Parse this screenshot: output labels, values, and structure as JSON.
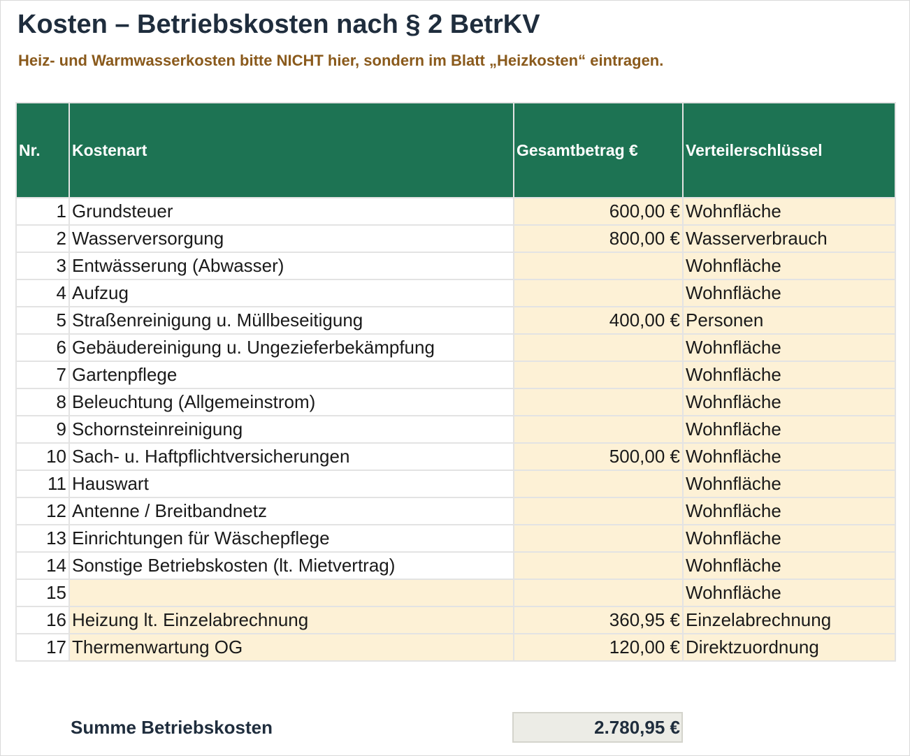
{
  "title": "Kosten – Betriebskosten nach § 2 BetrKV",
  "subtitle": "Heiz- und Warmwasserkosten bitte NICHT hier, sondern im Blatt „Heizkosten“ eintragen.",
  "table": {
    "headers": {
      "nr": "Nr.",
      "kostenart": "Kostenart",
      "gesamtbetrag": "Gesamtbetrag €",
      "verteilerschluessel": "Verteilerschlüssel"
    },
    "rows": [
      {
        "nr": "1",
        "kostenart": "Grundsteuer",
        "betrag": "600,00 €",
        "schluessel": "Wohnfläche"
      },
      {
        "nr": "2",
        "kostenart": "Wasserversorgung",
        "betrag": "800,00 €",
        "schluessel": "Wasserverbrauch"
      },
      {
        "nr": "3",
        "kostenart": "Entwässerung (Abwasser)",
        "betrag": "",
        "schluessel": "Wohnfläche"
      },
      {
        "nr": "4",
        "kostenart": "Aufzug",
        "betrag": "",
        "schluessel": "Wohnfläche"
      },
      {
        "nr": "5",
        "kostenart": "Straßenreinigung u. Müllbeseitigung",
        "betrag": "400,00 €",
        "schluessel": "Personen"
      },
      {
        "nr": "6",
        "kostenart": "Gebäudereinigung u. Ungezieferbekämpfung",
        "betrag": "",
        "schluessel": "Wohnfläche"
      },
      {
        "nr": "7",
        "kostenart": "Gartenpflege",
        "betrag": "",
        "schluessel": "Wohnfläche"
      },
      {
        "nr": "8",
        "kostenart": "Beleuchtung (Allgemeinstrom)",
        "betrag": "",
        "schluessel": "Wohnfläche"
      },
      {
        "nr": "9",
        "kostenart": "Schornsteinreinigung",
        "betrag": "",
        "schluessel": "Wohnfläche"
      },
      {
        "nr": "10",
        "kostenart": "Sach- u. Haftpflichtversicherungen",
        "betrag": "500,00 €",
        "schluessel": "Wohnfläche"
      },
      {
        "nr": "11",
        "kostenart": "Hauswart",
        "betrag": "",
        "schluessel": "Wohnfläche"
      },
      {
        "nr": "12",
        "kostenart": "Antenne / Breitbandnetz",
        "betrag": "",
        "schluessel": "Wohnfläche"
      },
      {
        "nr": "13",
        "kostenart": "Einrichtungen für Wäschepflege",
        "betrag": "",
        "schluessel": "Wohnfläche"
      },
      {
        "nr": "14",
        "kostenart": "Sonstige Betriebskosten (lt. Mietvertrag)",
        "betrag": "",
        "schluessel": "Wohnfläche"
      },
      {
        "nr": "15",
        "kostenart": "",
        "betrag": "",
        "schluessel": "Wohnfläche"
      },
      {
        "nr": "16",
        "kostenart": "Heizung lt. Einzelabrechnung",
        "betrag": "360,95 €",
        "schluessel": "Einzelabrechnung"
      },
      {
        "nr": "17",
        "kostenart": "Thermenwartung OG",
        "betrag": "120,00 €",
        "schluessel": "Direktzuordnung"
      }
    ]
  },
  "summary": {
    "label": "Summe Betriebskosten",
    "value": "2.780,95 €"
  },
  "colors": {
    "header_bg": "#1d7353",
    "input_bg": "#fdf1d6",
    "subtitle": "#8a5a1c",
    "title": "#1f2d3d",
    "sum_bg": "#ecece6"
  }
}
